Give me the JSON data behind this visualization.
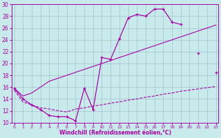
{
  "bg_color": "#c8eaea",
  "grid_color": "#9ab8c8",
  "line_color": "#aa00aa",
  "xlabel": "Windchill (Refroidissement éolien,°C)",
  "xlim_min": -0.3,
  "xlim_max": 23.3,
  "ylim_min": 10,
  "ylim_max": 30,
  "xticks": [
    0,
    1,
    2,
    3,
    4,
    5,
    6,
    7,
    8,
    9,
    10,
    11,
    12,
    13,
    14,
    15,
    16,
    17,
    18,
    19,
    20,
    21,
    22,
    23
  ],
  "yticks": [
    10,
    12,
    14,
    16,
    18,
    20,
    22,
    24,
    26,
    28,
    30
  ],
  "curve1_x": [
    0,
    1,
    2,
    3,
    4,
    5,
    6,
    7,
    8,
    9,
    10,
    11,
    12,
    13,
    14,
    15,
    16,
    17,
    18,
    19,
    20,
    21,
    22,
    23
  ],
  "curve1_y": [
    15.8,
    14.0,
    13.0,
    12.2,
    11.2,
    11.0,
    11.0,
    10.3,
    15.8,
    12.2,
    21.0,
    20.7,
    24.2,
    27.7,
    28.3,
    28.0,
    29.2,
    29.2,
    27.0,
    26.6,
    null,
    21.8,
    null,
    18.5
  ],
  "curve2_x": [
    0,
    1,
    2,
    3,
    4,
    5,
    6,
    7,
    8,
    9,
    10,
    11,
    12,
    13,
    14,
    15,
    16,
    17,
    18,
    19,
    20,
    21,
    22,
    23
  ],
  "curve2_y": [
    15.5,
    13.5,
    13.0,
    12.5,
    12.3,
    12.0,
    11.8,
    12.3,
    12.5,
    12.8,
    13.0,
    13.3,
    13.5,
    13.8,
    14.0,
    14.3,
    14.5,
    14.8,
    15.0,
    15.3,
    15.5,
    15.7,
    15.9,
    16.1
  ],
  "curve3_x": [
    0,
    1,
    2,
    3,
    4,
    5,
    6,
    7,
    8,
    9,
    10,
    11,
    12,
    13,
    14,
    15,
    16,
    17,
    18,
    19,
    20,
    21,
    22,
    23
  ],
  "curve3_y": [
    15.8,
    14.5,
    15.0,
    16.0,
    17.0,
    17.5,
    18.0,
    18.5,
    19.0,
    19.5,
    20.0,
    20.5,
    21.0,
    21.5,
    22.0,
    22.5,
    23.0,
    23.5,
    24.0,
    24.5,
    25.0,
    25.5,
    26.0,
    26.5
  ]
}
